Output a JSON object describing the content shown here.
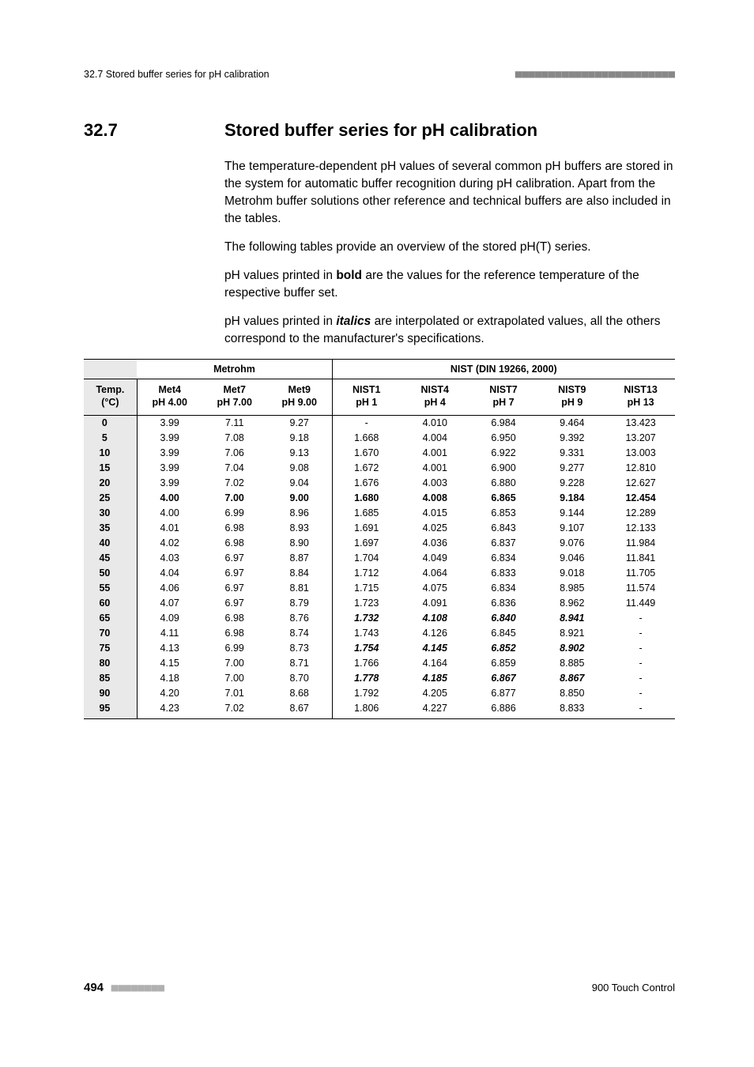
{
  "header": {
    "left": "32.7 Stored buffer series for pH calibration",
    "dots": "■■■■■■■■■■■■■■■■■■■■■■■■"
  },
  "section": {
    "num": "32.7",
    "title": "Stored buffer series for pH calibration"
  },
  "paras": {
    "p1": "The temperature-dependent pH values of several common pH buffers are stored in the system for automatic buffer recognition during pH calibration. Apart from the Metrohm buffer solutions other reference and technical buffers are also included in the tables.",
    "p2": "The following tables provide an overview of the stored pH(T) series.",
    "p3a": "pH values printed in ",
    "p3b": "bold",
    "p3c": " are the values for the reference temperature of the respective buffer set.",
    "p4a": "pH values printed in ",
    "p4b": "italics",
    "p4c": " are interpolated or extrapolated values, all the others correspond to the manufacturer's specifications."
  },
  "table": {
    "groups": {
      "g1": "Metrohm",
      "g2": "NIST (DIN 19266, 2000)"
    },
    "cols": {
      "c0a": "Temp.",
      "c0b": "(°C)",
      "c1a": "Met4",
      "c1b": "pH 4.00",
      "c2a": "Met7",
      "c2b": "pH 7.00",
      "c3a": "Met9",
      "c3b": "pH 9.00",
      "c4a": "NIST1",
      "c4b": "pH 1",
      "c5a": "NIST4",
      "c5b": "pH 4",
      "c6a": "NIST7",
      "c6b": "pH 7",
      "c7a": "NIST9",
      "c7b": "pH 9",
      "c8a": "NIST13",
      "c8b": "pH 13"
    },
    "rows": [
      {
        "t": "0",
        "m4": "3.99",
        "m7": "7.11",
        "m9": "9.27",
        "n1": "-",
        "n4": "4.010",
        "n7": "6.984",
        "n9": "9.464",
        "n13": "13.423"
      },
      {
        "t": "5",
        "m4": "3.99",
        "m7": "7.08",
        "m9": "9.18",
        "n1": "1.668",
        "n4": "4.004",
        "n7": "6.950",
        "n9": "9.392",
        "n13": "13.207"
      },
      {
        "t": "10",
        "m4": "3.99",
        "m7": "7.06",
        "m9": "9.13",
        "n1": "1.670",
        "n4": "4.001",
        "n7": "6.922",
        "n9": "9.331",
        "n13": "13.003"
      },
      {
        "t": "15",
        "m4": "3.99",
        "m7": "7.04",
        "m9": "9.08",
        "n1": "1.672",
        "n4": "4.001",
        "n7": "6.900",
        "n9": "9.277",
        "n13": "12.810"
      },
      {
        "t": "20",
        "m4": "3.99",
        "m7": "7.02",
        "m9": "9.04",
        "n1": "1.676",
        "n4": "4.003",
        "n7": "6.880",
        "n9": "9.228",
        "n13": "12.627"
      },
      {
        "t": "25",
        "m4": "4.00",
        "m7": "7.00",
        "m9": "9.00",
        "n1": "1.680",
        "n4": "4.008",
        "n7": "6.865",
        "n9": "9.184",
        "n13": "12.454",
        "ref": true
      },
      {
        "t": "30",
        "m4": "4.00",
        "m7": "6.99",
        "m9": "8.96",
        "n1": "1.685",
        "n4": "4.015",
        "n7": "6.853",
        "n9": "9.144",
        "n13": "12.289"
      },
      {
        "t": "35",
        "m4": "4.01",
        "m7": "6.98",
        "m9": "8.93",
        "n1": "1.691",
        "n4": "4.025",
        "n7": "6.843",
        "n9": "9.107",
        "n13": "12.133"
      },
      {
        "t": "40",
        "m4": "4.02",
        "m7": "6.98",
        "m9": "8.90",
        "n1": "1.697",
        "n4": "4.036",
        "n7": "6.837",
        "n9": "9.076",
        "n13": "11.984"
      },
      {
        "t": "45",
        "m4": "4.03",
        "m7": "6.97",
        "m9": "8.87",
        "n1": "1.704",
        "n4": "4.049",
        "n7": "6.834",
        "n9": "9.046",
        "n13": "11.841"
      },
      {
        "t": "50",
        "m4": "4.04",
        "m7": "6.97",
        "m9": "8.84",
        "n1": "1.712",
        "n4": "4.064",
        "n7": "6.833",
        "n9": "9.018",
        "n13": "11.705"
      },
      {
        "t": "55",
        "m4": "4.06",
        "m7": "6.97",
        "m9": "8.81",
        "n1": "1.715",
        "n4": "4.075",
        "n7": "6.834",
        "n9": "8.985",
        "n13": "11.574"
      },
      {
        "t": "60",
        "m4": "4.07",
        "m7": "6.97",
        "m9": "8.79",
        "n1": "1.723",
        "n4": "4.091",
        "n7": "6.836",
        "n9": "8.962",
        "n13": "11.449"
      },
      {
        "t": "65",
        "m4": "4.09",
        "m7": "6.98",
        "m9": "8.76",
        "n1": "1.732",
        "n4": "4.108",
        "n7": "6.840",
        "n9": "8.941",
        "n13": "-",
        "it": true
      },
      {
        "t": "70",
        "m4": "4.11",
        "m7": "6.98",
        "m9": "8.74",
        "n1": "1.743",
        "n4": "4.126",
        "n7": "6.845",
        "n9": "8.921",
        "n13": "-"
      },
      {
        "t": "75",
        "m4": "4.13",
        "m7": "6.99",
        "m9": "8.73",
        "n1": "1.754",
        "n4": "4.145",
        "n7": "6.852",
        "n9": "8.902",
        "n13": "-",
        "it": true
      },
      {
        "t": "80",
        "m4": "4.15",
        "m7": "7.00",
        "m9": "8.71",
        "n1": "1.766",
        "n4": "4.164",
        "n7": "6.859",
        "n9": "8.885",
        "n13": "-"
      },
      {
        "t": "85",
        "m4": "4.18",
        "m7": "7.00",
        "m9": "8.70",
        "n1": "1.778",
        "n4": "4.185",
        "n7": "6.867",
        "n9": "8.867",
        "n13": "-",
        "it": true
      },
      {
        "t": "90",
        "m4": "4.20",
        "m7": "7.01",
        "m9": "8.68",
        "n1": "1.792",
        "n4": "4.205",
        "n7": "6.877",
        "n9": "8.850",
        "n13": "-"
      },
      {
        "t": "95",
        "m4": "4.23",
        "m7": "7.02",
        "m9": "8.67",
        "n1": "1.806",
        "n4": "4.227",
        "n7": "6.886",
        "n9": "8.833",
        "n13": "-"
      }
    ]
  },
  "footer": {
    "pagenum": "494",
    "dots": "■■■■■■■■",
    "title": "900 Touch Control"
  }
}
